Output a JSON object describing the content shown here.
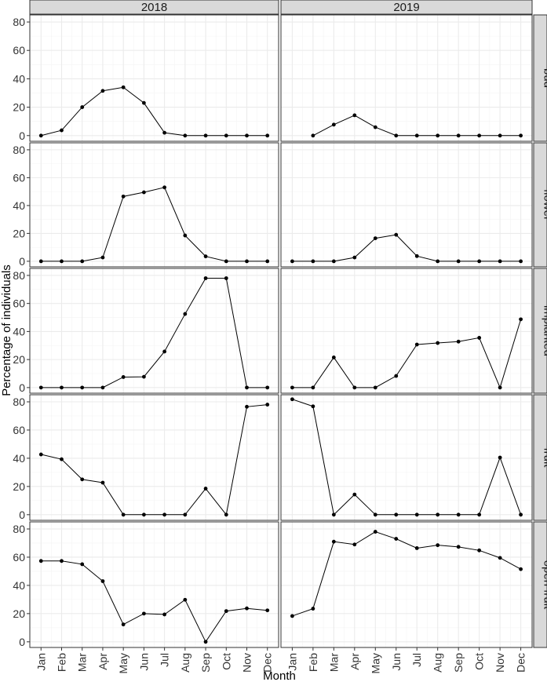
{
  "chart_data": {
    "type": "line",
    "facet_columns": [
      "2018",
      "2019"
    ],
    "facet_rows": [
      "bud",
      "flower",
      "implanted",
      "fruit",
      "open fruit"
    ],
    "x": [
      "Jan",
      "Feb",
      "Mar",
      "Apr",
      "May",
      "Jun",
      "Jul",
      "Aug",
      "Sep",
      "Oct",
      "Nov",
      "Dec"
    ],
    "xlabel": "Month",
    "ylabel": "Percentage of individuals",
    "yticks": [
      "0",
      "20",
      "40",
      "60",
      "80"
    ],
    "ylim": [
      -4,
      85
    ],
    "grid": true,
    "legend": "none",
    "colors": {
      "line": "#000000",
      "panel_border": "#333333",
      "strip_background": "#d9d9d9",
      "grid_major": "#ebebeb",
      "grid_minor": "#f4f4f4"
    },
    "panels": [
      {
        "row": "bud",
        "col": "2018",
        "values": [
          0,
          3.7,
          20,
          31.5,
          34,
          23,
          2,
          0,
          0,
          0,
          0,
          0
        ]
      },
      {
        "row": "bud",
        "col": "2019",
        "values": [
          null,
          0,
          7.7,
          14.3,
          5.9,
          0,
          0,
          0,
          0,
          0,
          0,
          0
        ]
      },
      {
        "row": "flower",
        "col": "2018",
        "values": [
          0,
          0,
          0,
          2.7,
          46.5,
          49.5,
          53,
          18.5,
          3.5,
          0,
          0,
          0
        ]
      },
      {
        "row": "flower",
        "col": "2019",
        "values": [
          0,
          0,
          0,
          2.7,
          16.5,
          19,
          3.7,
          0,
          0,
          0,
          0,
          0
        ]
      },
      {
        "row": "implanted",
        "col": "2018",
        "values": [
          0,
          0,
          0,
          0,
          7.5,
          7.7,
          25.7,
          52.5,
          78,
          78,
          0,
          0
        ]
      },
      {
        "row": "implanted",
        "col": "2019",
        "values": [
          0,
          0,
          21.5,
          0,
          0,
          8.3,
          30.7,
          31.8,
          32.8,
          35.5,
          0,
          48.7
        ]
      },
      {
        "row": "fruit",
        "col": "2018",
        "values": [
          42.7,
          39.3,
          25,
          22.7,
          0,
          0,
          0,
          0,
          18.5,
          0,
          76.5,
          78
        ]
      },
      {
        "row": "fruit",
        "col": "2019",
        "values": [
          81.8,
          76.8,
          0,
          14.3,
          0,
          0,
          0,
          0,
          0,
          0,
          40.5,
          0
        ]
      },
      {
        "row": "open fruit",
        "col": "2018",
        "values": [
          57.3,
          57.3,
          55,
          43,
          12.3,
          20,
          19.4,
          29.8,
          0,
          21.8,
          23.7,
          22.3
        ]
      },
      {
        "row": "open fruit",
        "col": "2019",
        "values": [
          18.3,
          23.5,
          71,
          69,
          78,
          73,
          66.4,
          68.5,
          67.3,
          64.8,
          59.5,
          51.5
        ]
      }
    ]
  }
}
